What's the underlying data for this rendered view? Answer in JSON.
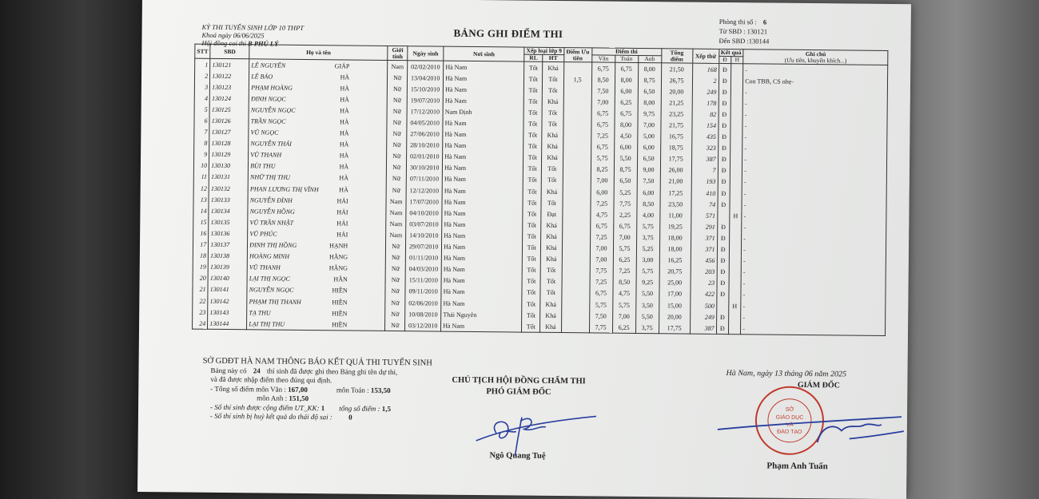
{
  "header": {
    "exam": "KỲ THI TUYỂN SINH LỚP 10 THPT",
    "date_label": "Khoá ngày",
    "date": "06/06/2025",
    "council_label": "Hội đồng coi thi",
    "council": "B PHỦ LÝ",
    "title": "BẢNG GHI ĐIỂM THI",
    "room_label": "Phòng thi số :",
    "room": "6",
    "from_label": "Từ SBD :",
    "from": "130121",
    "to_label": "Đến SBD :",
    "to": "130144"
  },
  "columns": {
    "stt": "STT",
    "sbd": "SBD",
    "name": "Họ và tên",
    "gender": "Giới tính",
    "dob": "Ngày sinh",
    "pob": "Nơi sinh",
    "grade9": "Xếp loại lớp 9",
    "rl": "RL",
    "ht": "HT",
    "priority": "Điểm Ưu tiên",
    "scores": "Điểm thi",
    "van": "Văn",
    "toan": "Toán",
    "anh": "Anh",
    "total": "Tổng điểm",
    "rank": "Xếp thứ",
    "result": "Kết quả",
    "d": "Đ",
    "h": "H",
    "note": "Ghi chú",
    "note_sub": "(Ưu tiên, khuyến khích...)"
  },
  "rows": [
    {
      "stt": "1",
      "sbd": "130121",
      "ho": "LÊ NGUYÊN",
      "ten": "GIÁP",
      "gt": "Nam",
      "ns": "02/02/2010",
      "noi": "Hà Nam",
      "rl": "Tốt",
      "ht": "Khá",
      "ut": "",
      "van": "6,75",
      "toan": "6,75",
      "anh": "8,00",
      "tong": "21,50",
      "xt": "168",
      "d": "Đ",
      "h": "",
      "gc": "-"
    },
    {
      "stt": "2",
      "sbd": "130122",
      "ho": "LÊ BẢO",
      "ten": "HÀ",
      "gt": "Nữ",
      "ns": "13/04/2010",
      "noi": "Hà Nam",
      "rl": "Tốt",
      "ht": "Tốt",
      "ut": "1,5",
      "van": "8,50",
      "toan": "8,00",
      "anh": "8,75",
      "tong": "26,75",
      "xt": "2",
      "d": "Đ",
      "h": "",
      "gc": "Con TBB, CS nhẹ-"
    },
    {
      "stt": "3",
      "sbd": "130123",
      "ho": "PHẠM HOÀNG",
      "ten": "HÀ",
      "gt": "Nữ",
      "ns": "15/10/2010",
      "noi": "Hà Nam",
      "rl": "Tốt",
      "ht": "Tốt",
      "ut": "",
      "van": "7,50",
      "toan": "6,00",
      "anh": "6,50",
      "tong": "20,00",
      "xt": "249",
      "d": "Đ",
      "h": "",
      "gc": "-"
    },
    {
      "stt": "4",
      "sbd": "130124",
      "ho": "ĐINH NGỌC",
      "ten": "HÀ",
      "gt": "Nữ",
      "ns": "19/07/2010",
      "noi": "Hà Nam",
      "rl": "Tốt",
      "ht": "Khá",
      "ut": "",
      "van": "7,00",
      "toan": "6,25",
      "anh": "8,00",
      "tong": "21,25",
      "xt": "178",
      "d": "Đ",
      "h": "",
      "gc": "-"
    },
    {
      "stt": "5",
      "sbd": "130125",
      "ho": "NGUYỄN NGỌC",
      "ten": "HÀ",
      "gt": "Nữ",
      "ns": "17/12/2010",
      "noi": "Nam Định",
      "rl": "Tốt",
      "ht": "Tốt",
      "ut": "",
      "van": "6,75",
      "toan": "6,75",
      "anh": "9,75",
      "tong": "23,25",
      "xt": "82",
      "d": "Đ",
      "h": "",
      "gc": "-"
    },
    {
      "stt": "6",
      "sbd": "130126",
      "ho": "TRẦN NGỌC",
      "ten": "HÀ",
      "gt": "Nữ",
      "ns": "04/05/2010",
      "noi": "Hà Nam",
      "rl": "Tốt",
      "ht": "Tốt",
      "ut": "",
      "van": "6,75",
      "toan": "8,00",
      "anh": "7,00",
      "tong": "21,75",
      "xt": "154",
      "d": "Đ",
      "h": "",
      "gc": "-"
    },
    {
      "stt": "7",
      "sbd": "130127",
      "ho": "VŨ NGỌC",
      "ten": "HÀ",
      "gt": "Nữ",
      "ns": "27/06/2010",
      "noi": "Hà Nam",
      "rl": "Tốt",
      "ht": "Khá",
      "ut": "",
      "van": "7,25",
      "toan": "4,50",
      "anh": "5,00",
      "tong": "16,75",
      "xt": "435",
      "d": "Đ",
      "h": "",
      "gc": "-"
    },
    {
      "stt": "8",
      "sbd": "130128",
      "ho": "NGUYỄN THÁI",
      "ten": "HÀ",
      "gt": "Nữ",
      "ns": "28/10/2010",
      "noi": "Hà Nam",
      "rl": "Tốt",
      "ht": "Khá",
      "ut": "",
      "van": "6,75",
      "toan": "6,00",
      "anh": "6,00",
      "tong": "18,75",
      "xt": "323",
      "d": "Đ",
      "h": "",
      "gc": "-"
    },
    {
      "stt": "9",
      "sbd": "130129",
      "ho": "VŨ THANH",
      "ten": "HÀ",
      "gt": "Nữ",
      "ns": "02/01/2010",
      "noi": "Hà Nam",
      "rl": "Tốt",
      "ht": "Khá",
      "ut": "",
      "van": "5,75",
      "toan": "5,50",
      "anh": "6,50",
      "tong": "17,75",
      "xt": "387",
      "d": "Đ",
      "h": "",
      "gc": "-"
    },
    {
      "stt": "10",
      "sbd": "130130",
      "ho": "BÙI THU",
      "ten": "HÀ",
      "gt": "Nữ",
      "ns": "30/10/2010",
      "noi": "Hà Nam",
      "rl": "Tốt",
      "ht": "Tốt",
      "ut": "",
      "van": "8,25",
      "toan": "8,75",
      "anh": "9,00",
      "tong": "26,00",
      "xt": "7",
      "d": "Đ",
      "h": "",
      "gc": "-"
    },
    {
      "stt": "11",
      "sbd": "130131",
      "ho": "NHỮ THỊ THU",
      "ten": "HÀ",
      "gt": "Nữ",
      "ns": "07/11/2010",
      "noi": "Hà Nam",
      "rl": "Tốt",
      "ht": "Tốt",
      "ut": "",
      "van": "7,00",
      "toan": "6,50",
      "anh": "7,50",
      "tong": "21,00",
      "xt": "193",
      "d": "Đ",
      "h": "",
      "gc": "-"
    },
    {
      "stt": "12",
      "sbd": "130132",
      "ho": "PHAN LƯƠNG THỊ VĨNH",
      "ten": "HÀ",
      "gt": "Nữ",
      "ns": "12/12/2010",
      "noi": "Hà Nam",
      "rl": "Tốt",
      "ht": "Khá",
      "ut": "",
      "van": "6,00",
      "toan": "5,25",
      "anh": "6,00",
      "tong": "17,25",
      "xt": "410",
      "d": "Đ",
      "h": "",
      "gc": "-"
    },
    {
      "stt": "13",
      "sbd": "130133",
      "ho": "NGUYỄN ĐÌNH",
      "ten": "HẢI",
      "gt": "Nam",
      "ns": "17/07/2010",
      "noi": "Hà Nam",
      "rl": "Tốt",
      "ht": "Tốt",
      "ut": "",
      "van": "7,25",
      "toan": "7,75",
      "anh": "8,50",
      "tong": "23,50",
      "xt": "74",
      "d": "Đ",
      "h": "",
      "gc": "-"
    },
    {
      "stt": "14",
      "sbd": "130134",
      "ho": "NGUYỄN HỒNG",
      "ten": "HẢI",
      "gt": "Nam",
      "ns": "04/10/2010",
      "noi": "Hà Nam",
      "rl": "Tốt",
      "ht": "Đạt",
      "ut": "",
      "van": "4,75",
      "toan": "2,25",
      "anh": "4,00",
      "tong": "11,00",
      "xt": "571",
      "d": "",
      "h": "H",
      "gc": "-"
    },
    {
      "stt": "15",
      "sbd": "130135",
      "ho": "VŨ TRẦN NHẬT",
      "ten": "HẢI",
      "gt": "Nam",
      "ns": "03/07/2010",
      "noi": "Hà Nam",
      "rl": "Tốt",
      "ht": "Khá",
      "ut": "",
      "van": "6,75",
      "toan": "6,75",
      "anh": "5,75",
      "tong": "19,25",
      "xt": "291",
      "d": "Đ",
      "h": "",
      "gc": "-"
    },
    {
      "stt": "16",
      "sbd": "130136",
      "ho": "VŨ PHÚC",
      "ten": "HẢI",
      "gt": "Nam",
      "ns": "14/10/2010",
      "noi": "Hà Nam",
      "rl": "Tốt",
      "ht": "Khá",
      "ut": "",
      "van": "7,25",
      "toan": "7,00",
      "anh": "3,75",
      "tong": "18,00",
      "xt": "371",
      "d": "Đ",
      "h": "",
      "gc": "-"
    },
    {
      "stt": "17",
      "sbd": "130137",
      "ho": "ĐINH THỊ HỒNG",
      "ten": "HẠNH",
      "gt": "Nữ",
      "ns": "29/07/2010",
      "noi": "Hà Nam",
      "rl": "Tốt",
      "ht": "Khá",
      "ut": "",
      "van": "7,00",
      "toan": "5,75",
      "anh": "5,25",
      "tong": "18,00",
      "xt": "371",
      "d": "Đ",
      "h": "",
      "gc": "-"
    },
    {
      "stt": "18",
      "sbd": "130138",
      "ho": "HOÀNG MINH",
      "ten": "HẰNG",
      "gt": "Nữ",
      "ns": "01/11/2010",
      "noi": "Hà Nam",
      "rl": "Tốt",
      "ht": "Khá",
      "ut": "",
      "van": "7,00",
      "toan": "6,25",
      "anh": "3,00",
      "tong": "16,25",
      "xt": "456",
      "d": "Đ",
      "h": "",
      "gc": "-"
    },
    {
      "stt": "19",
      "sbd": "130139",
      "ho": "VŨ THANH",
      "ten": "HẰNG",
      "gt": "Nữ",
      "ns": "04/03/2010",
      "noi": "Hà Nam",
      "rl": "Tốt",
      "ht": "Tốt",
      "ut": "",
      "van": "7,75",
      "toan": "7,25",
      "anh": "5,75",
      "tong": "20,75",
      "xt": "203",
      "d": "Đ",
      "h": "",
      "gc": "-"
    },
    {
      "stt": "20",
      "sbd": "130140",
      "ho": "LẠI THỊ NGỌC",
      "ten": "HÂN",
      "gt": "Nữ",
      "ns": "15/11/2010",
      "noi": "Hà Nam",
      "rl": "Tốt",
      "ht": "Tốt",
      "ut": "",
      "van": "7,25",
      "toan": "8,50",
      "anh": "9,25",
      "tong": "25,00",
      "xt": "23",
      "d": "Đ",
      "h": "",
      "gc": "-"
    },
    {
      "stt": "21",
      "sbd": "130141",
      "ho": "NGUYỄN NGỌC",
      "ten": "HIỀN",
      "gt": "Nữ",
      "ns": "09/11/2010",
      "noi": "Hà Nam",
      "rl": "Tốt",
      "ht": "Tốt",
      "ut": "",
      "van": "6,75",
      "toan": "4,75",
      "anh": "5,50",
      "tong": "17,00",
      "xt": "422",
      "d": "Đ",
      "h": "",
      "gc": "-"
    },
    {
      "stt": "22",
      "sbd": "130142",
      "ho": "PHẠM THỊ THANH",
      "ten": "HIỀN",
      "gt": "Nữ",
      "ns": "02/06/2010",
      "noi": "Hà Nam",
      "rl": "Tốt",
      "ht": "Khá",
      "ut": "",
      "van": "5,75",
      "toan": "5,75",
      "anh": "3,50",
      "tong": "15,00",
      "xt": "500",
      "d": "",
      "h": "H",
      "gc": "-"
    },
    {
      "stt": "23",
      "sbd": "130143",
      "ho": "TẠ THU",
      "ten": "HIỀN",
      "gt": "Nữ",
      "ns": "10/08/2010",
      "noi": "Thái Nguyên",
      "rl": "Tốt",
      "ht": "Khá",
      "ut": "",
      "van": "7,50",
      "toan": "7,00",
      "anh": "5,50",
      "tong": "20,00",
      "xt": "249",
      "d": "Đ",
      "h": "",
      "gc": "-"
    },
    {
      "stt": "24",
      "sbd": "130144",
      "ho": "LẠI THỊ THU",
      "ten": "HIỀN",
      "gt": "Nữ",
      "ns": "03/12/2010",
      "noi": "Hà Nam",
      "rl": "Tốt",
      "ht": "Khá",
      "ut": "",
      "van": "7,75",
      "toan": "6,25",
      "anh": "3,75",
      "tong": "17,75",
      "xt": "387",
      "d": "Đ",
      "h": "",
      "gc": "-"
    }
  ],
  "summary": {
    "heading": "SỞ GDĐT HÀ NAM THÔNG BÁO KẾT QUẢ THI TUYỂN SINH",
    "line1_a": "Bảng này có",
    "count": "24",
    "line1_b": "thí sinh đã được ghi theo Bảng ghi tên dự thi,",
    "line2": "và đã được nhập điểm theo đúng qui định.",
    "van_label": "- Tổng số điểm môn Văn :",
    "van_total": "167,00",
    "toan_label": "môn Toán :",
    "toan_total": "153,50",
    "anh_label": "môn Anh :",
    "anh_total": "151,50",
    "ut_label": "- Số thí sinh được cộng điểm UT_KK:",
    "ut_count": "1",
    "ut_sum_label": "tổng số điểm :",
    "ut_sum": "1,5",
    "cancel_label": "- Số thí sinh bị huỷ kết quả do thái độ sai :",
    "cancel_count": "0"
  },
  "signatures": {
    "left_title1": "CHỦ TỊCH HỘI ĐỒNG CHẤM THI",
    "left_title2": "PHÓ GIÁM ĐỐC",
    "left_name": "Ngô Quang Tuệ",
    "place_date": "Hà Nam, ngày 13 tháng 06 năm 2025",
    "right_title": "GIÁM ĐỐC",
    "right_name": "Phạm Anh Tuấn",
    "stamp_text": "CỘNG HÒA XHCN VIỆT NAM · SỞ GIÁO DỤC VÀ ĐÀO TẠO · TỈNH HÀ NAM",
    "stamp_color": "#c0392b",
    "ink_color": "#2a3f9e"
  }
}
